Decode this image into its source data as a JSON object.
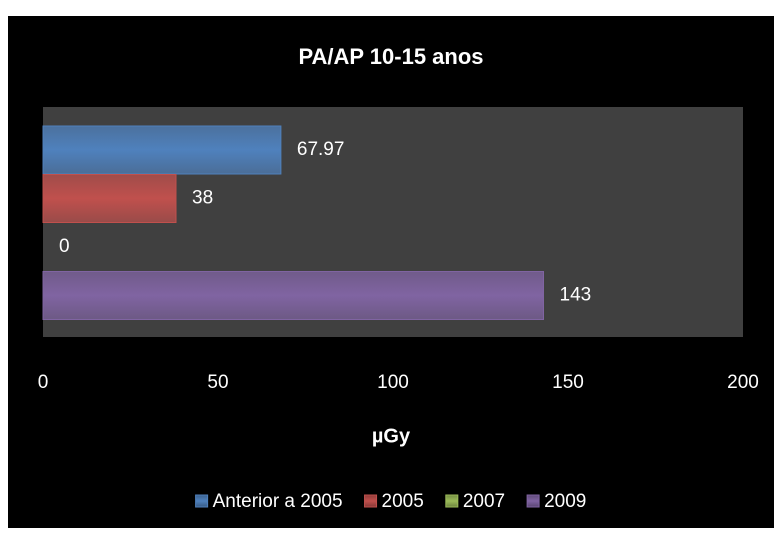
{
  "chart_data": {
    "type": "hbar",
    "title": "PA/AP 10-15 anos",
    "x_label": "µGy",
    "series": [
      {
        "name": "Anterior a 2005",
        "color": "#4f81bd",
        "values": [
          67.97
        ]
      },
      {
        "name": "2005",
        "color": "#c0504d",
        "values": [
          38
        ]
      },
      {
        "name": "2007",
        "color": "#9bbb59",
        "values": [
          0
        ]
      },
      {
        "name": "2009",
        "color": "#8064a2",
        "values": [
          143
        ]
      }
    ],
    "xlim": [
      0,
      200
    ],
    "xticks": [
      0,
      50,
      100,
      150,
      200
    ],
    "grid": false,
    "legend": "bottom"
  }
}
